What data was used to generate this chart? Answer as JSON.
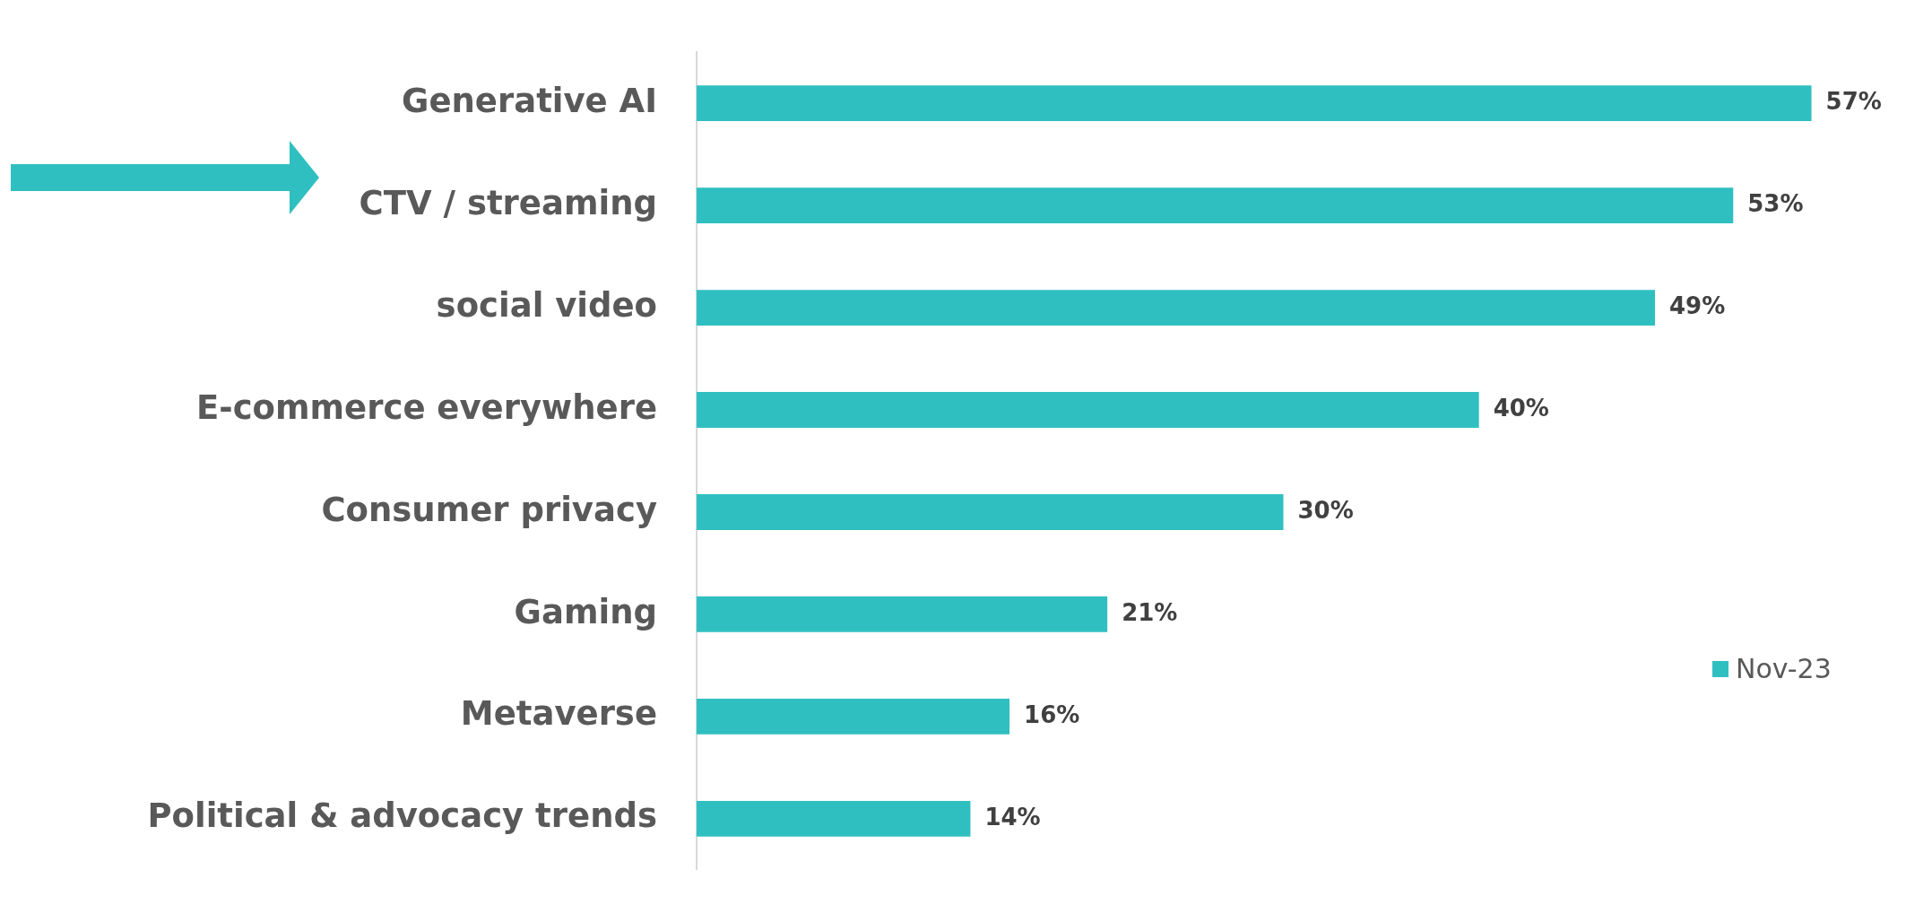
{
  "chart_data": {
    "type": "bar",
    "orientation": "horizontal",
    "categories": [
      "Generative AI",
      "CTV / streaming",
      "social video",
      "E-commerce everywhere",
      "Consumer privacy",
      "Gaming",
      "Metaverse",
      "Political & advocacy trends"
    ],
    "series": [
      {
        "name": "Nov-23",
        "color": "#30bfc1",
        "values": [
          57,
          53,
          49,
          40,
          30,
          21,
          16,
          14
        ],
        "value_labels": [
          "57%",
          "53%",
          "49%",
          "40%",
          "30%",
          "21%",
          "16%",
          "14%"
        ]
      }
    ],
    "tick_labels": "y",
    "legend": "right"
  }
}
